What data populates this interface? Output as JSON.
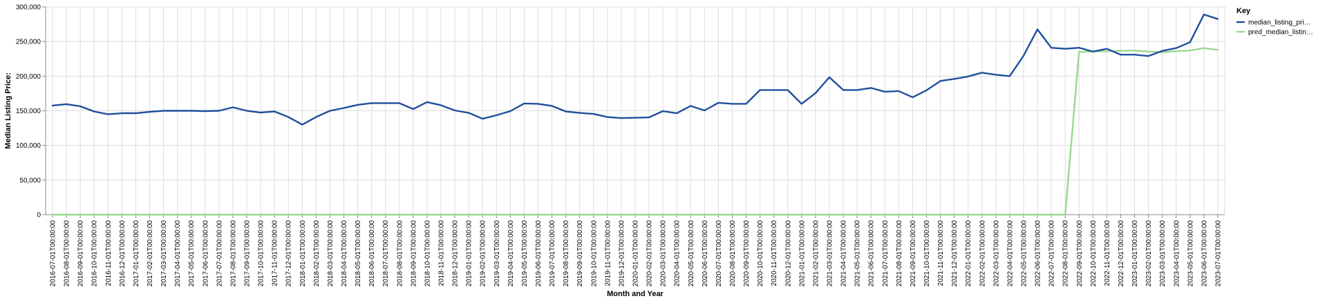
{
  "chart_data": {
    "type": "line",
    "xlabel": "Month and Year",
    "ylabel": "Median Listing Price:",
    "ylim": [
      0,
      300000
    ],
    "yticks": [
      "0",
      "50,000",
      "100,000",
      "150,000",
      "200,000",
      "250,000",
      "300,000"
    ],
    "grid": true,
    "legend": {
      "title": "Key",
      "placement": "top-right",
      "entries": [
        "median_listing_pri…",
        "pred_median_listin…"
      ]
    },
    "x": [
      "2016-07-01T00:00:00",
      "2016-08-01T00:00:00",
      "2016-09-01T00:00:00",
      "2016-10-01T00:00:00",
      "2016-11-01T00:00:00",
      "2016-12-01T00:00:00",
      "2017-01-01T00:00:00",
      "2017-02-01T00:00:00",
      "2017-03-01T00:00:00",
      "2017-04-01T00:00:00",
      "2017-05-01T00:00:00",
      "2017-06-01T00:00:00",
      "2017-07-01T00:00:00",
      "2017-08-01T00:00:00",
      "2017-09-01T00:00:00",
      "2017-10-01T00:00:00",
      "2017-11-01T00:00:00",
      "2017-12-01T00:00:00",
      "2018-01-01T00:00:00",
      "2018-02-01T00:00:00",
      "2018-03-01T00:00:00",
      "2018-04-01T00:00:00",
      "2018-05-01T00:00:00",
      "2018-06-01T00:00:00",
      "2018-07-01T00:00:00",
      "2018-08-01T00:00:00",
      "2018-09-01T00:00:00",
      "2018-10-01T00:00:00",
      "2018-11-01T00:00:00",
      "2018-12-01T00:00:00",
      "2019-01-01T00:00:00",
      "2019-02-01T00:00:00",
      "2019-03-01T00:00:00",
      "2019-04-01T00:00:00",
      "2019-05-01T00:00:00",
      "2019-06-01T00:00:00",
      "2019-07-01T00:00:00",
      "2019-08-01T00:00:00",
      "2019-09-01T00:00:00",
      "2019-10-01T00:00:00",
      "2019-11-01T00:00:00",
      "2019-12-01T00:00:00",
      "2020-01-01T00:00:00",
      "2020-02-01T00:00:00",
      "2020-03-01T00:00:00",
      "2020-04-01T00:00:00",
      "2020-05-01T00:00:00",
      "2020-06-01T00:00:00",
      "2020-07-01T00:00:00",
      "2020-08-01T00:00:00",
      "2020-09-01T00:00:00",
      "2020-10-01T00:00:00",
      "2020-11-01T00:00:00",
      "2020-12-01T00:00:00",
      "2021-01-01T00:00:00",
      "2021-02-01T00:00:00",
      "2021-03-01T00:00:00",
      "2021-04-01T00:00:00",
      "2021-05-01T00:00:00",
      "2021-06-01T00:00:00",
      "2021-07-01T00:00:00",
      "2021-08-01T00:00:00",
      "2021-09-01T00:00:00",
      "2021-10-01T00:00:00",
      "2021-11-01T00:00:00",
      "2021-12-01T00:00:00",
      "2022-01-01T00:00:00",
      "2022-02-01T00:00:00",
      "2022-03-01T00:00:00",
      "2022-04-01T00:00:00",
      "2022-05-01T00:00:00",
      "2022-06-01T00:00:00",
      "2022-07-01T00:00:00",
      "2022-08-01T00:00:00",
      "2022-09-01T00:00:00",
      "2022-10-01T00:00:00",
      "2022-11-01T00:00:00",
      "2022-12-01T00:00:00",
      "2023-01-01T00:00:00",
      "2023-02-01T00:00:00",
      "2023-03-01T00:00:00",
      "2023-04-01T00:00:00",
      "2023-05-01T00:00:00",
      "2023-06-01T00:00:00",
      "2023-07-01T00:00:00"
    ],
    "series": [
      {
        "name": "median_listing_pri…",
        "color": "#1f4e9c",
        "values": [
          157500,
          159500,
          156500,
          149000,
          145000,
          146500,
          146500,
          148500,
          150000,
          150000,
          150000,
          149500,
          150000,
          155000,
          150000,
          147500,
          149000,
          141000,
          130000,
          141000,
          150000,
          154000,
          158500,
          161000,
          161000,
          161000,
          152500,
          162500,
          158000,
          150500,
          147000,
          138500,
          143500,
          149500,
          160500,
          160000,
          157000,
          149000,
          147000,
          145500,
          141000,
          139500,
          140000,
          140500,
          149500,
          146500,
          157000,
          150500,
          161500,
          160000,
          160000,
          180000,
          180000,
          180000,
          160000,
          175500,
          198500,
          180000,
          180000,
          183000,
          177500,
          178500,
          169500,
          179500,
          193000,
          196000,
          199500,
          205000,
          202000,
          200000,
          229500,
          267500,
          241000,
          239500,
          241000,
          235500,
          239500,
          231000,
          231000,
          229000,
          236500,
          240500,
          249000,
          289000,
          282500
        ]
      },
      {
        "name": "pred_median_listin…",
        "color": "#98d98e",
        "values": [
          0,
          0,
          0,
          0,
          0,
          0,
          0,
          0,
          0,
          0,
          0,
          0,
          0,
          0,
          0,
          0,
          0,
          0,
          0,
          0,
          0,
          0,
          0,
          0,
          0,
          0,
          0,
          0,
          0,
          0,
          0,
          0,
          0,
          0,
          0,
          0,
          0,
          0,
          0,
          0,
          0,
          0,
          0,
          0,
          0,
          0,
          0,
          0,
          0,
          0,
          0,
          0,
          0,
          0,
          0,
          0,
          0,
          0,
          0,
          0,
          0,
          0,
          0,
          0,
          0,
          0,
          0,
          0,
          0,
          0,
          0,
          0,
          0,
          0,
          235000,
          235500,
          236000,
          236500,
          237000,
          235500,
          234500,
          236000,
          237000,
          240500,
          238000
        ]
      }
    ]
  }
}
